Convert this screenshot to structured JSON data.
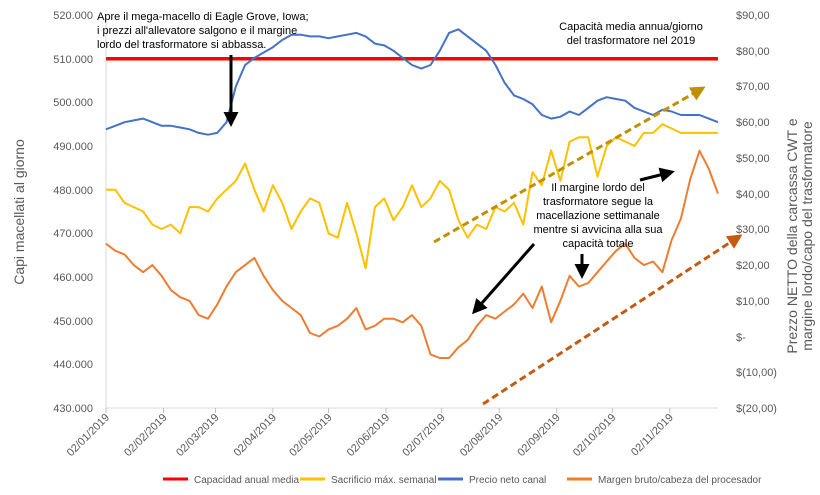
{
  "chart_data": {
    "type": "line",
    "left_axis": {
      "label": "Capi macellati al giorno",
      "range": [
        430000,
        520000
      ],
      "ticks": [
        "430.000",
        "440.000",
        "450.000",
        "460.000",
        "470.000",
        "480.000",
        "490.000",
        "500.000",
        "510.000",
        "520.000"
      ]
    },
    "right_axis": {
      "label_line1": "Prezzo NETTO della carcassa CWT e",
      "label_line2": "margine lordo/capo del trasformatore",
      "range": [
        -20,
        90
      ],
      "ticks": [
        "$(20,00)",
        "$(10,00)",
        "$-",
        "$10,00",
        "$20,00",
        "$30,00",
        "$40,00",
        "$50,00",
        "$60,00",
        "$70,00",
        "$80,00",
        "$90,00"
      ]
    },
    "x_tick_labels": [
      "02/01/2019",
      "02/02/2019",
      "02/03/2019",
      "02/04/2019",
      "02/05/2019",
      "02/06/2019",
      "02/07/2019",
      "02/08/2019",
      "02/09/2019",
      "02/10/2019",
      "02/11/2019"
    ],
    "series": [
      {
        "name": "Capacidad anual media",
        "axis": "left",
        "color": "#FF0000",
        "x": [
          0,
          330
        ],
        "values": [
          510000,
          510000
        ]
      },
      {
        "name": "Sacrificio máx. semanal",
        "axis": "left",
        "color": "#FFC000",
        "x": [
          0,
          5,
          10,
          15,
          20,
          25,
          30,
          35,
          40,
          45,
          50,
          55,
          60,
          65,
          70,
          75,
          80,
          85,
          90,
          95,
          100,
          105,
          110,
          115,
          120,
          125,
          130,
          135,
          140,
          145,
          150,
          155,
          160,
          165,
          170,
          175,
          180,
          185,
          190,
          195,
          200,
          205,
          210,
          215,
          220,
          225,
          230,
          235,
          240,
          245,
          250,
          255,
          260,
          265,
          270,
          275,
          280,
          285,
          290,
          295,
          300,
          305,
          310,
          315,
          320,
          325,
          330
        ],
        "values": [
          480000,
          480000,
          477000,
          476000,
          475000,
          472000,
          471000,
          472000,
          470000,
          476000,
          476000,
          475000,
          478000,
          480000,
          482000,
          486000,
          480000,
          475000,
          481000,
          477000,
          471000,
          475000,
          478000,
          477000,
          470000,
          469000,
          477000,
          470000,
          462000,
          476000,
          478000,
          473000,
          476000,
          481000,
          476000,
          478000,
          482000,
          480000,
          473000,
          469000,
          472000,
          471000,
          476000,
          475000,
          477000,
          472000,
          484000,
          481000,
          489000,
          482000,
          491000,
          492000,
          492000,
          483000,
          490000,
          492000,
          491000,
          490000,
          493000,
          493000,
          495000,
          494000,
          493000,
          493000,
          493000,
          493000,
          493000
        ]
      },
      {
        "name": "Precio neto canal",
        "axis": "right",
        "color": "#4472C4",
        "x": [
          0,
          5,
          10,
          15,
          20,
          25,
          30,
          35,
          40,
          45,
          50,
          55,
          60,
          65,
          70,
          75,
          80,
          85,
          90,
          95,
          100,
          105,
          110,
          115,
          120,
          125,
          130,
          135,
          140,
          145,
          150,
          155,
          160,
          165,
          170,
          175,
          180,
          185,
          190,
          195,
          200,
          205,
          210,
          215,
          220,
          225,
          230,
          235,
          240,
          245,
          250,
          255,
          260,
          265,
          270,
          275,
          280,
          285,
          290,
          295,
          300,
          305,
          310,
          315,
          320,
          325,
          330
        ],
        "values": [
          58.0,
          59.0,
          60.0,
          60.5,
          61.0,
          60.0,
          59.0,
          59.0,
          58.5,
          58.0,
          57.0,
          56.5,
          57.0,
          60.0,
          70.0,
          76.0,
          78.0,
          79.5,
          81.0,
          83.0,
          84.5,
          84.5,
          84.0,
          84.0,
          83.5,
          84.0,
          84.5,
          85.0,
          84.0,
          82.0,
          81.5,
          80.0,
          78.0,
          76.0,
          75.0,
          76.0,
          80.0,
          85.0,
          86.0,
          84.0,
          82.0,
          80.0,
          76.0,
          71.0,
          67.5,
          66.5,
          65.0,
          62.0,
          61.0,
          61.5,
          63.0,
          62.0,
          64.0,
          66.0,
          67.0,
          66.5,
          66.0,
          64.0,
          63.0,
          62.0,
          63.5,
          63.0,
          62.0,
          62.0,
          62.0,
          61.0,
          60.0
        ]
      },
      {
        "name": "Margen bruto/cabeza del procesador",
        "axis": "right",
        "color": "#ED7D31",
        "x": [
          0,
          5,
          10,
          15,
          20,
          25,
          30,
          35,
          40,
          45,
          50,
          55,
          60,
          65,
          70,
          75,
          80,
          85,
          90,
          95,
          100,
          105,
          110,
          115,
          120,
          125,
          130,
          135,
          140,
          145,
          150,
          155,
          160,
          165,
          170,
          175,
          180,
          185,
          190,
          195,
          200,
          205,
          210,
          215,
          220,
          225,
          230,
          235,
          240,
          245,
          250,
          255,
          260,
          265,
          270,
          275,
          280,
          285,
          290,
          295,
          300,
          305,
          310,
          315,
          320,
          325,
          330
        ],
        "values": [
          26.0,
          24.0,
          23.0,
          20.0,
          18.0,
          20.0,
          17.0,
          13.0,
          11.0,
          10.0,
          6.0,
          5.0,
          9.0,
          14.0,
          18.0,
          20.0,
          22.0,
          17.0,
          13.0,
          10.0,
          8.0,
          6.0,
          1.0,
          0.0,
          2.0,
          3.0,
          5.0,
          8.0,
          2.0,
          3.0,
          5.0,
          5.0,
          4.0,
          6.0,
          3.0,
          -5.0,
          -6.0,
          -6.0,
          -3.0,
          -1.0,
          3.0,
          6.0,
          5.0,
          7.0,
          9.0,
          12.0,
          8.0,
          14.0,
          4.0,
          10.0,
          17.0,
          14.0,
          15.0,
          18.0,
          21.0,
          24.0,
          26.0,
          22.0,
          20.0,
          21.0,
          18.0,
          27.0,
          33.0,
          44.0,
          52.0,
          47.0,
          40.0
        ]
      }
    ],
    "annotations": [
      {
        "lines": [
          "Apre il mega-macello di Eagle Grove, Iowa;",
          "i prezzi all'allevatore salgono e il margine",
          "lordo del trasformatore si abbassa."
        ]
      },
      {
        "lines": [
          "Capacità media annua/giorno",
          "del trasformatore nel 2019"
        ]
      },
      {
        "lines": [
          "Il margine lordo del",
          "trasformatore segue la",
          "macellazione settimanale",
          "mentre si avvicina alla sua",
          "capacità totale"
        ]
      }
    ],
    "legend": {
      "position": "bottom",
      "items": [
        {
          "label": "Capacidad anual media",
          "color": "#FF0000"
        },
        {
          "label": "Sacrificio máx. semanal",
          "color": "#FFC000"
        },
        {
          "label": "Precio neto canal",
          "color": "#4472C4"
        },
        {
          "label": "Margen bruto/cabeza del procesador",
          "color": "#ED7D31"
        }
      ]
    }
  }
}
